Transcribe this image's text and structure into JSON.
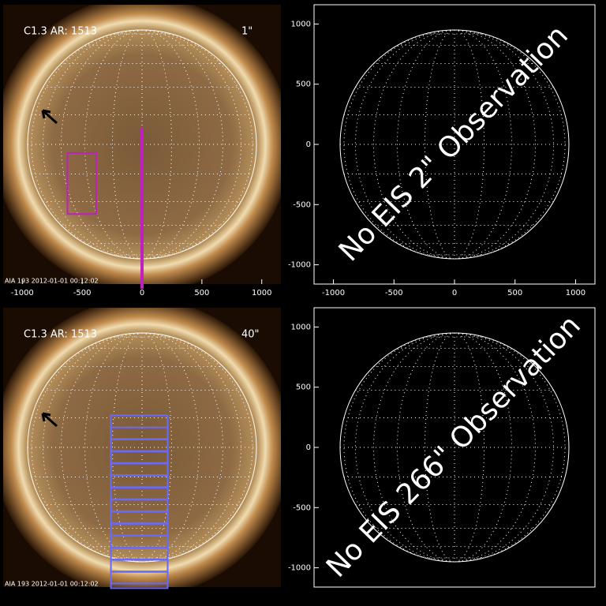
{
  "chart_data": [
    {
      "type": "image",
      "label": "C1.3 AR: 1513",
      "tag": "1\"",
      "tag_color": "#c020c0",
      "footer": "AIA 193  2012-01-01 00:12:02",
      "xlim": [
        -1160,
        1160
      ],
      "ylim": [
        -1160,
        1160
      ],
      "xticks": [
        -1000,
        -500,
        0,
        500,
        1000
      ],
      "boxes": [
        [
          -623,
          -383,
          -71,
          -578
        ]
      ],
      "box_color": "#c020c0",
      "line": {
        "x": 0,
        "y": [
          136,
          -1200
        ],
        "color": "#c020c0"
      }
    },
    {
      "type": "disk",
      "annotation": "No EIS 2\" Observation",
      "xlim": [
        -1160,
        1160
      ],
      "ylim": [
        -1160,
        1160
      ],
      "xticks": [
        -1000,
        -500,
        0,
        500,
        1000
      ],
      "yticks": [
        -1000,
        -500,
        0,
        500,
        1000
      ]
    },
    {
      "type": "image",
      "label": "C1.3 AR: 1513",
      "tag": "40\"",
      "tag_color": "#6060f0",
      "footer": "AIA 193  2012-01-01 00:12:02",
      "xlim": [
        -1160,
        1160
      ],
      "ylim": [
        -1160,
        1160
      ],
      "boxes": [
        [
          -260,
          214,
          266,
          70
        ],
        [
          -260,
          214,
          166,
          -30
        ],
        [
          -260,
          214,
          66,
          -130
        ],
        [
          -260,
          214,
          -34,
          -230
        ],
        [
          -260,
          214,
          -134,
          -330
        ],
        [
          -260,
          214,
          -234,
          -430
        ],
        [
          -260,
          214,
          -334,
          -530
        ],
        [
          -260,
          214,
          -434,
          -630
        ],
        [
          -260,
          214,
          -534,
          -730
        ],
        [
          -260,
          214,
          -634,
          -830
        ],
        [
          -260,
          214,
          -734,
          -930
        ],
        [
          -260,
          214,
          -834,
          -1030
        ],
        [
          -260,
          214,
          -934,
          -1130
        ],
        [
          -260,
          214,
          -1034,
          -1169
        ]
      ],
      "box_color": "#6a6af8"
    },
    {
      "type": "disk",
      "annotation": "No EIS 266\" Observation",
      "xlim": [
        -1160,
        1160
      ],
      "ylim": [
        -1160,
        1160
      ],
      "yticks": [
        -1000,
        -500,
        0,
        500,
        1000
      ]
    }
  ]
}
